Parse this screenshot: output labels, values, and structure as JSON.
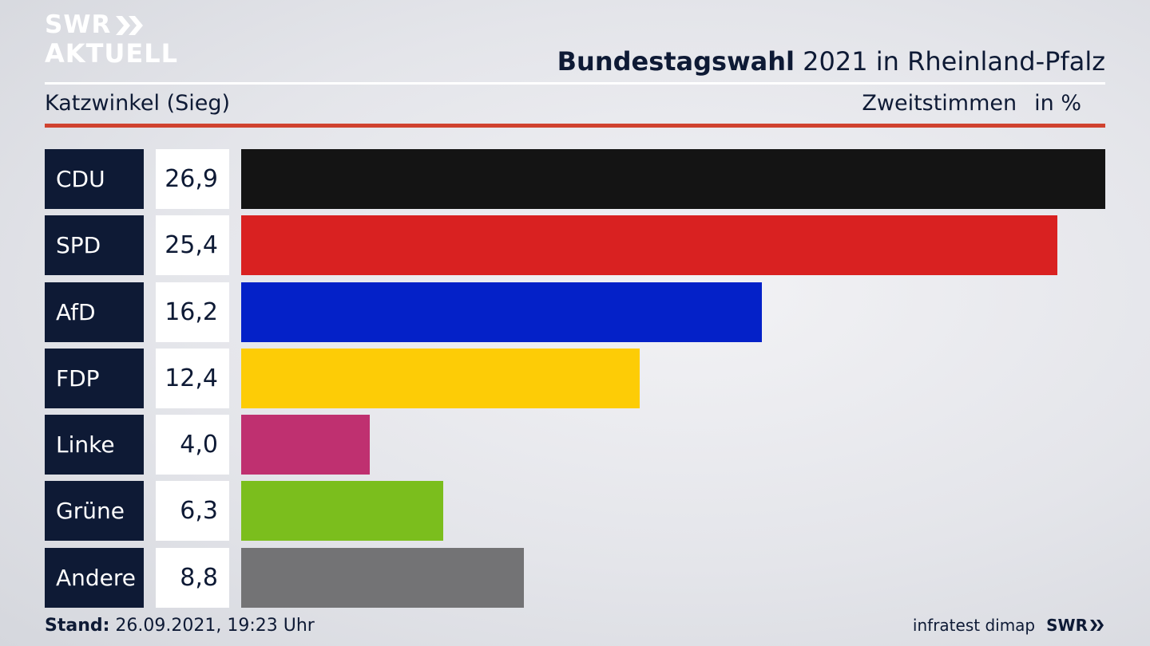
{
  "logo": {
    "line1": "SWR",
    "line2": "AKTUELL"
  },
  "header": {
    "title_bold": "Bundestagswahl",
    "title_rest": " 2021 in Rheinland-Pfalz",
    "location": "Katzwinkel (Sieg)",
    "measure": "Zweitstimmen",
    "unit": "in %"
  },
  "chart_data": {
    "type": "bar",
    "orientation": "horizontal",
    "categories": [
      "CDU",
      "SPD",
      "AfD",
      "FDP",
      "Linke",
      "Grüne",
      "Andere"
    ],
    "values": [
      26.9,
      25.4,
      16.2,
      12.4,
      4.0,
      6.3,
      8.8
    ],
    "value_labels": [
      "26,9",
      "25,4",
      "16,2",
      "12,4",
      "4,0",
      "6,3",
      "8,8"
    ],
    "colors": [
      "#141414",
      "#d92121",
      "#0421c8",
      "#fdcc06",
      "#bf3070",
      "#7bbe1d",
      "#737375"
    ],
    "xlim": [
      0,
      26.9
    ]
  },
  "footer": {
    "stand_label": "Stand:",
    "stand_value": " 26.09.2021, 19:23 Uhr",
    "source": "infratest dimap",
    "brand": "SWR"
  }
}
